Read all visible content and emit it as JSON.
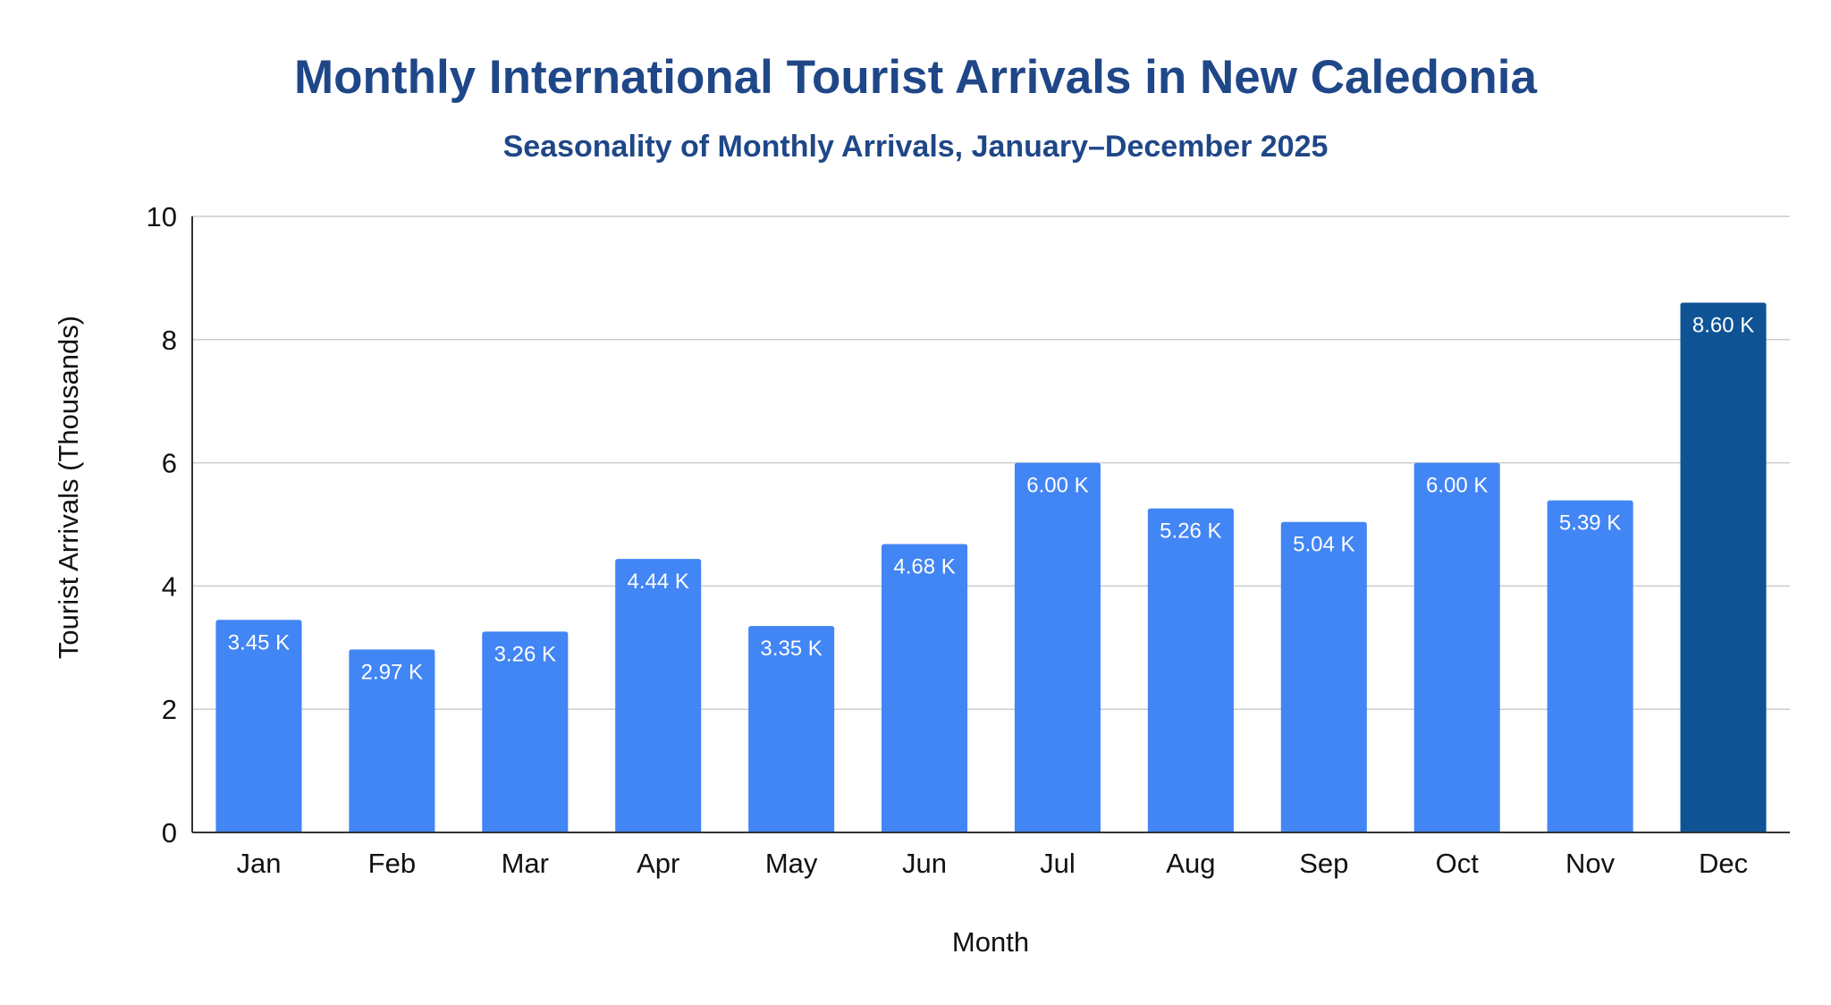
{
  "chart_data": {
    "type": "bar",
    "title": "Monthly International Tourist Arrivals in New Caledonia",
    "subtitle": "Seasonality of Monthly Arrivals, January–December 2025",
    "xlabel": "Month",
    "ylabel": "Tourist Arrivals (Thousands)",
    "categories": [
      "Jan",
      "Feb",
      "Mar",
      "Apr",
      "May",
      "Jun",
      "Jul",
      "Aug",
      "Sep",
      "Oct",
      "Nov",
      "Dec"
    ],
    "values": [
      3.45,
      2.97,
      3.26,
      4.44,
      3.35,
      4.68,
      6.0,
      5.26,
      5.04,
      6.0,
      5.39,
      8.6
    ],
    "data_labels": [
      "3.45 K",
      "2.97 K",
      "3.26 K",
      "4.44 K",
      "3.35 K",
      "4.68 K",
      "6.00 K",
      "5.26 K",
      "5.04 K",
      "6.00 K",
      "5.39 K",
      "8.60 K"
    ],
    "ylim": [
      0,
      10
    ],
    "yticks": [
      0,
      2,
      4,
      6,
      8,
      10
    ],
    "grid": true,
    "legend": "none",
    "colors": {
      "bar": "#4285f4",
      "highlight_bar": "#0f5394",
      "title": "#1f4788"
    },
    "highlight_category": "Dec"
  }
}
